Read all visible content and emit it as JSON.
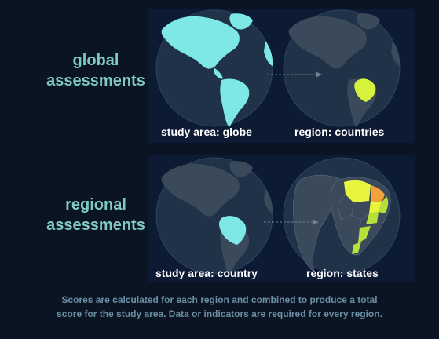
{
  "rows": [
    {
      "title_lines": [
        "global",
        "assessments"
      ],
      "study_caption": "study area: globe",
      "region_caption": "region: countries"
    },
    {
      "title_lines": [
        "regional",
        "assessments"
      ],
      "study_caption": "study area: country",
      "region_caption": "region: states"
    }
  ],
  "footnote_lines": [
    "Scores are calculated for each region and combined to produce a total",
    "score for the study area. Data or indicators are required for every region."
  ],
  "colors": {
    "background": "#0b1422",
    "panel": "#0d1a33",
    "globe_ocean": "#1f3247",
    "land_dark": "#3a4a5a",
    "land_highlight": "#7de8e6",
    "brazil_yellow": "#d6f23a",
    "title_teal": "#7fc9c4",
    "state_orange": "#f2a23a",
    "state_green": "#b8e03a",
    "state_yellowgreen": "#e8f53c"
  }
}
